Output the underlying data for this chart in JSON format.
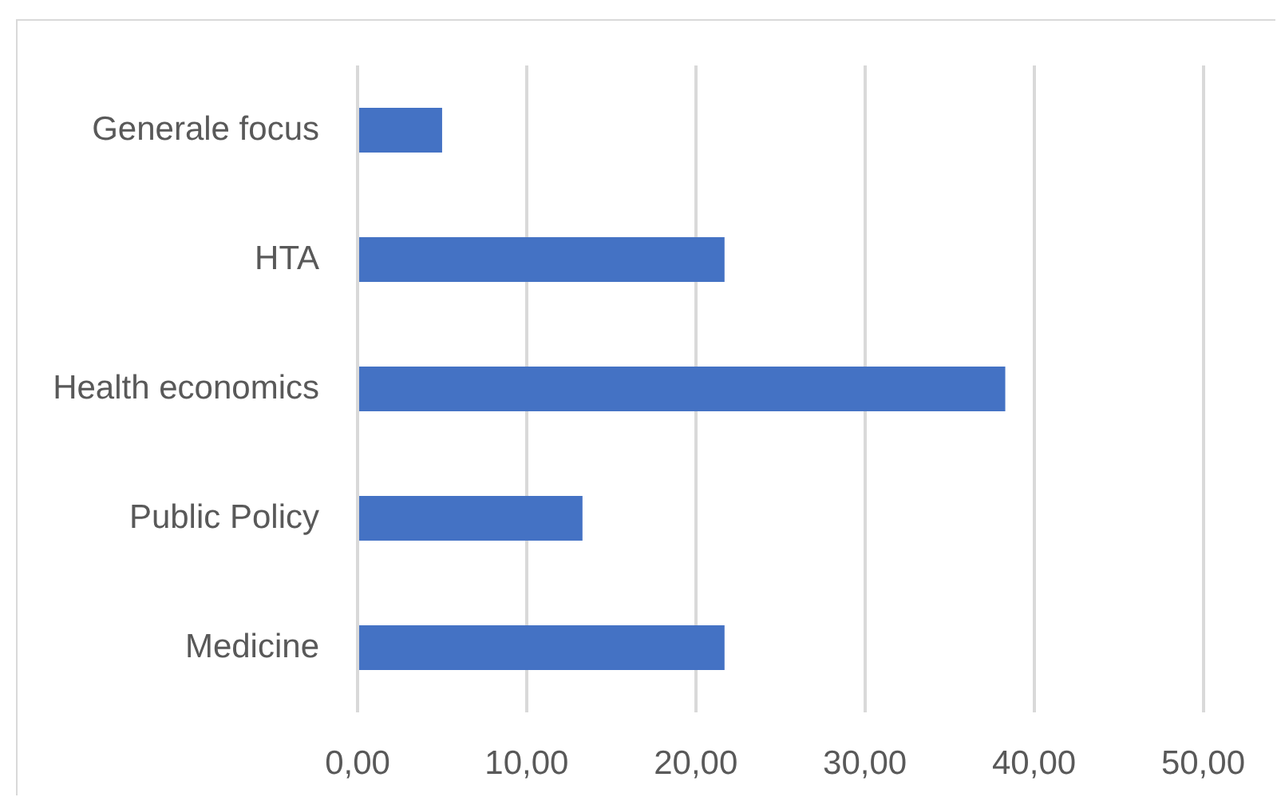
{
  "chart_data": {
    "type": "bar",
    "orientation": "horizontal",
    "categories": [
      "Generale focus",
      "HTA",
      "Health economics",
      "Public Policy",
      "Medicine"
    ],
    "values": [
      5.0,
      21.7,
      38.3,
      13.3,
      21.7
    ],
    "color": "#4472c4",
    "xlim": [
      0,
      50
    ],
    "xticks": [
      {
        "value": 0,
        "label": "0,00"
      },
      {
        "value": 10,
        "label": "10,00"
      },
      {
        "value": 20,
        "label": "20,00"
      },
      {
        "value": 30,
        "label": "30,00"
      },
      {
        "value": 40,
        "label": "40,00"
      },
      {
        "value": 50,
        "label": "50,00"
      }
    ],
    "grid": "x"
  }
}
